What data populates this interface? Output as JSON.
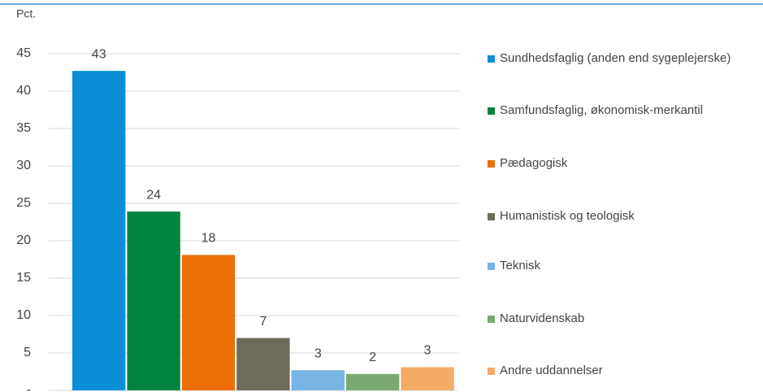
{
  "chart_data": {
    "type": "bar",
    "y_axis_label": "Pct.",
    "ylim": [
      0,
      45
    ],
    "yticks": [
      {
        "value": 0,
        "label": "-"
      },
      5,
      10,
      15,
      20,
      25,
      30,
      35,
      40,
      45
    ],
    "grid": true,
    "legend": "right",
    "series": [
      {
        "name": "Sundhedsfaglig (anden end sygeplejerske)",
        "color": "#0a8fd6",
        "values": [
          42.7
        ],
        "value_labels": [
          "43"
        ]
      },
      {
        "name": "Samfundsfaglig, økonomisk-merkantil",
        "color": "#008540",
        "values": [
          23.9
        ],
        "value_labels": [
          "24"
        ]
      },
      {
        "name": "Pædagogisk",
        "color": "#ec6e06",
        "values": [
          18.1
        ],
        "value_labels": [
          "18"
        ]
      },
      {
        "name": "Humanistisk og teologisk",
        "color": "#6e6b5d",
        "values": [
          7
        ],
        "value_labels": [
          "7"
        ]
      },
      {
        "name": "Teknisk",
        "color": "#78b4e4",
        "values": [
          2.7
        ],
        "value_labels": [
          "3"
        ]
      },
      {
        "name": "Naturvidenskab",
        "color": "#7aaa72",
        "values": [
          2.2
        ],
        "value_labels": [
          "2"
        ]
      },
      {
        "name": "Andre uddannelser",
        "color": "#f4ab66",
        "values": [
          3.1
        ],
        "value_labels": [
          "3"
        ]
      }
    ]
  }
}
